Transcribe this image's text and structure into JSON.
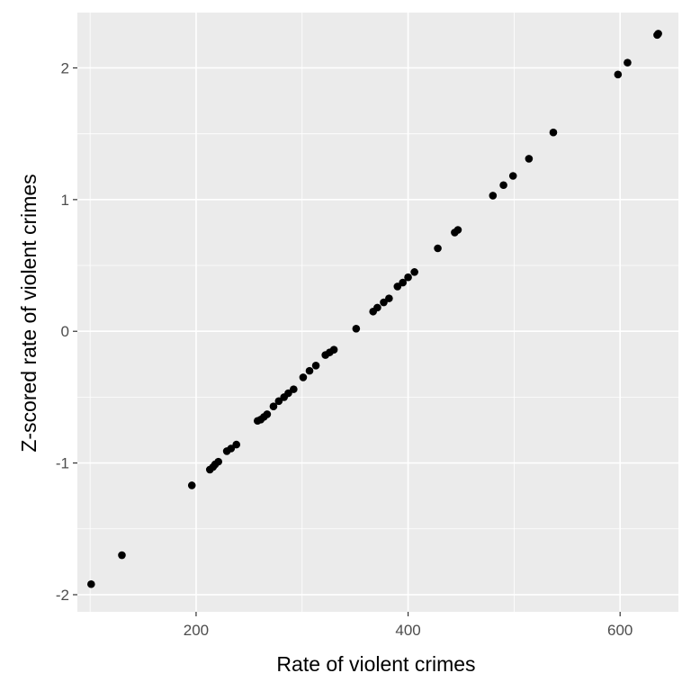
{
  "chart_data": {
    "type": "scatter",
    "title": "",
    "xlabel": "Rate of violent crimes",
    "ylabel": "Z-scored rate of violent crimes",
    "xlim": [
      88,
      655
    ],
    "ylim": [
      -2.13,
      2.42
    ],
    "xticks": [
      200,
      400,
      600
    ],
    "xtick_labels": [
      "200",
      "400",
      "600"
    ],
    "yticks": [
      -2,
      -1,
      0,
      1,
      2
    ],
    "ytick_labels": [
      "-2",
      "-1",
      "0",
      "1",
      "2"
    ],
    "grid": true,
    "panel_color": "#ebebeb",
    "grid_color": "#ffffff",
    "point_color": "#000000",
    "series": [
      {
        "x": [
          101,
          130,
          196,
          213,
          216,
          218,
          221,
          229,
          233,
          238,
          258,
          261,
          264,
          267,
          273,
          278,
          283,
          287,
          292,
          301,
          307,
          313,
          322,
          326,
          330,
          351,
          367,
          371,
          377,
          382,
          390,
          395,
          400,
          406,
          428,
          444,
          447,
          480,
          490,
          499,
          514,
          537,
          598,
          607,
          635,
          636
        ],
        "y": [
          -1.92,
          -1.7,
          -1.17,
          -1.05,
          -1.03,
          -1.01,
          -0.99,
          -0.91,
          -0.89,
          -0.86,
          -0.68,
          -0.67,
          -0.65,
          -0.63,
          -0.57,
          -0.53,
          -0.5,
          -0.47,
          -0.44,
          -0.35,
          -0.3,
          -0.26,
          -0.18,
          -0.16,
          -0.14,
          0.02,
          0.15,
          0.18,
          0.22,
          0.25,
          0.34,
          0.37,
          0.41,
          0.45,
          0.63,
          0.75,
          0.77,
          1.03,
          1.11,
          1.18,
          1.31,
          1.51,
          1.95,
          2.04,
          2.25,
          2.26
        ]
      }
    ]
  }
}
